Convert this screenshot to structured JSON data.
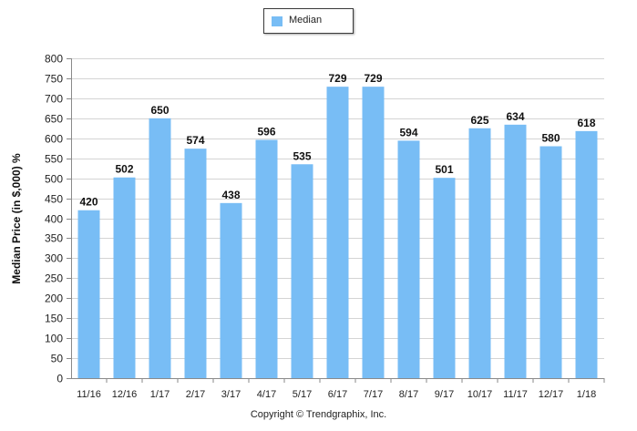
{
  "legend": {
    "label": "Median",
    "color": "#78bdf5"
  },
  "copyright": "Copyright © Trendgraphix, Inc.",
  "chart_data": {
    "type": "bar",
    "ylabel": "Median Price (in $,000) %",
    "xlabel": "",
    "ylim": [
      0,
      800
    ],
    "y_ticks": [
      0,
      50,
      100,
      150,
      200,
      250,
      300,
      350,
      400,
      450,
      500,
      550,
      600,
      650,
      700,
      750,
      800
    ],
    "grid": true,
    "legend_position": "top-center",
    "bar_color": "#78bdf5",
    "categories": [
      "11/16",
      "12/16",
      "1/17",
      "2/17",
      "3/17",
      "4/17",
      "5/17",
      "6/17",
      "7/17",
      "8/17",
      "9/17",
      "10/17",
      "11/17",
      "12/17",
      "1/18"
    ],
    "series": [
      {
        "name": "Median",
        "values": [
          420,
          502,
          650,
          574,
          438,
          596,
          535,
          729,
          729,
          594,
          501,
          625,
          634,
          580,
          618
        ],
        "labels": [
          "420",
          "502",
          "650",
          "574",
          "438",
          "596",
          "535",
          "729",
          "729",
          "594",
          "501",
          "625",
          "634",
          "580",
          "618"
        ]
      }
    ]
  }
}
